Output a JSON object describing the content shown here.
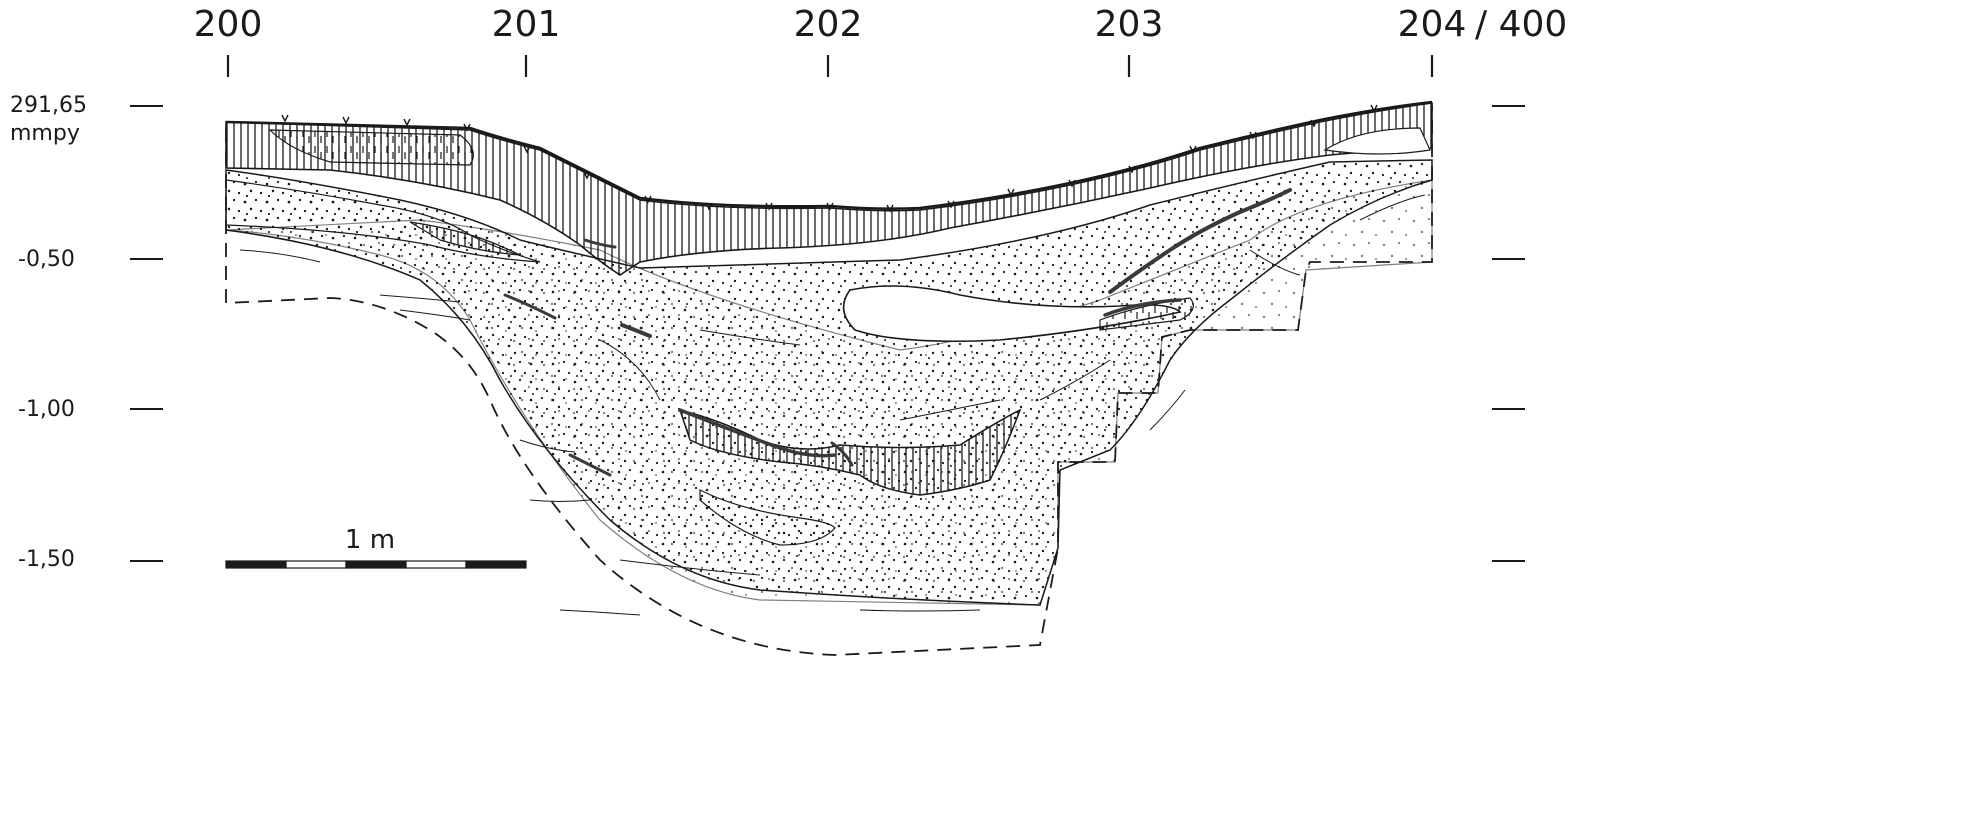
{
  "grid_columns": [
    "200",
    "201",
    "202",
    "203",
    "204"
  ],
  "grid_row_suffix": "/ 400",
  "elevation_reference": {
    "value": "291,65",
    "unit": "mmpy"
  },
  "depth_levels": [
    "-0,50",
    "-1,00",
    "-1,50"
  ],
  "scale_bar": {
    "label": "1 m"
  },
  "colors": {
    "ink": "#1a1a1a",
    "paper": "#ffffff",
    "charcoal": "#3a3a3a"
  }
}
